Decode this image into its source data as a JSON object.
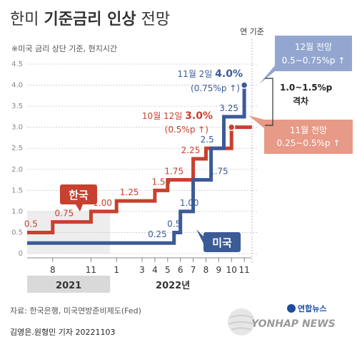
{
  "header": {
    "title_light_1": "한미 ",
    "title_bold": "기준금리 인상",
    "title_light_2": " 전망",
    "note": "※미국 금리 상단 기준, 현지시간"
  },
  "labels": {
    "ref_year": "연 기준",
    "korea_badge": "한국",
    "us_badge": "미국",
    "gap": "1.0~1.5%p",
    "gap_sub": "격차"
  },
  "callouts": {
    "us_dec_forecast": {
      "line1": "12월 전망",
      "line2": "0.5~0.75%p ↑"
    },
    "kr_nov_forecast": {
      "line1": "11월 전망",
      "line2": "0.25~0.5%p ↑"
    },
    "us_nov": {
      "date": "11월 2일 ",
      "value": "4.0%",
      "change": "(0.75%p ↑)"
    },
    "kr_oct": {
      "date": "10월 12일 ",
      "value": "3.0%",
      "change": "(0.5%p ↑)"
    }
  },
  "footer": {
    "source": "자료: 한국은행, 미국연방준비제도(Fed)",
    "byline": "김영은.원형민 기자  20221103",
    "logo_kr": "연합뉴스",
    "logo_en": "YONHAP NEWS"
  },
  "colors": {
    "korea": "#c8402f",
    "us": "#3b5b97",
    "forecast_us_bg": "#93a6cf",
    "forecast_kr_bg": "#e79a87",
    "year_band": "#d9d9d9",
    "grid": "#c7c7c7"
  },
  "chart_data": {
    "type": "line",
    "step": true,
    "ylim": [
      0,
      4.5
    ],
    "yticks": [
      "0",
      "0.5",
      "1.0",
      "1.5",
      "2.0",
      "2.5",
      "3.0",
      "3.5",
      "4.0",
      "4.5"
    ],
    "x_ticks": [
      {
        "pos": 8,
        "label": "8"
      },
      {
        "pos": 11,
        "label": "11"
      },
      {
        "pos": 13,
        "label": "1"
      },
      {
        "pos": 15,
        "label": "3"
      },
      {
        "pos": 16,
        "label": "4"
      },
      {
        "pos": 17,
        "label": "5"
      },
      {
        "pos": 18,
        "label": "6"
      },
      {
        "pos": 19,
        "label": "7"
      },
      {
        "pos": 20,
        "label": "8"
      },
      {
        "pos": 21,
        "label": "9"
      },
      {
        "pos": 22,
        "label": "10"
      },
      {
        "pos": 23,
        "label": "11"
      }
    ],
    "xrange": [
      6,
      24
    ],
    "years": [
      {
        "label": "2021",
        "from": 6,
        "to": 12.5,
        "shaded": true
      },
      {
        "label": "2022년",
        "from": 12.5,
        "to": 24,
        "shaded": false
      }
    ],
    "series": [
      {
        "name": "한국",
        "color": "#c8402f",
        "steps": [
          {
            "x": 6,
            "y": 0.5
          },
          {
            "x": 8,
            "y": 0.75
          },
          {
            "x": 11,
            "y": 1.0
          },
          {
            "x": 13,
            "y": 1.25
          },
          {
            "x": 16,
            "y": 1.5
          },
          {
            "x": 17,
            "y": 1.75
          },
          {
            "x": 19,
            "y": 2.25
          },
          {
            "x": 20,
            "y": 2.5
          },
          {
            "x": 22,
            "y": 3.0
          }
        ],
        "end_x": 23.6,
        "value_labels": [
          {
            "x": 6.3,
            "y": 0.5,
            "text": "0.5"
          },
          {
            "x": 8.9,
            "y": 0.75,
            "text": "0.75"
          },
          {
            "x": 11.9,
            "y": 1.0,
            "text": "1.00"
          },
          {
            "x": 14.0,
            "y": 1.25,
            "text": "1.25"
          },
          {
            "x": 16.5,
            "y": 1.5,
            "text": "1.50"
          },
          {
            "x": 17.5,
            "y": 1.75,
            "text": "1.75"
          },
          {
            "x": 18.8,
            "y": 2.25,
            "text": "2.25"
          }
        ]
      },
      {
        "name": "미국",
        "color": "#3b5b97",
        "steps": [
          {
            "x": 6,
            "y": 0.25
          },
          {
            "x": 17.5,
            "y": 0.5
          },
          {
            "x": 18,
            "y": 1.0
          },
          {
            "x": 19,
            "y": 1.75
          },
          {
            "x": 20.4,
            "y": 2.5
          },
          {
            "x": 21.4,
            "y": 3.25
          },
          {
            "x": 23.0,
            "y": 4.0
          }
        ],
        "value_labels": [
          {
            "x": 16.2,
            "y": 0.25,
            "text": "0.25"
          },
          {
            "x": 17.5,
            "y": 0.5,
            "text": "0.5"
          },
          {
            "x": 18.7,
            "y": 1.0,
            "text": "1.00"
          },
          {
            "x": 21.0,
            "y": 1.75,
            "text": "1.75"
          },
          {
            "x": 20.1,
            "y": 2.5,
            "text": "2.5"
          },
          {
            "x": 21.8,
            "y": 3.25,
            "text": "3.25"
          }
        ]
      }
    ]
  }
}
